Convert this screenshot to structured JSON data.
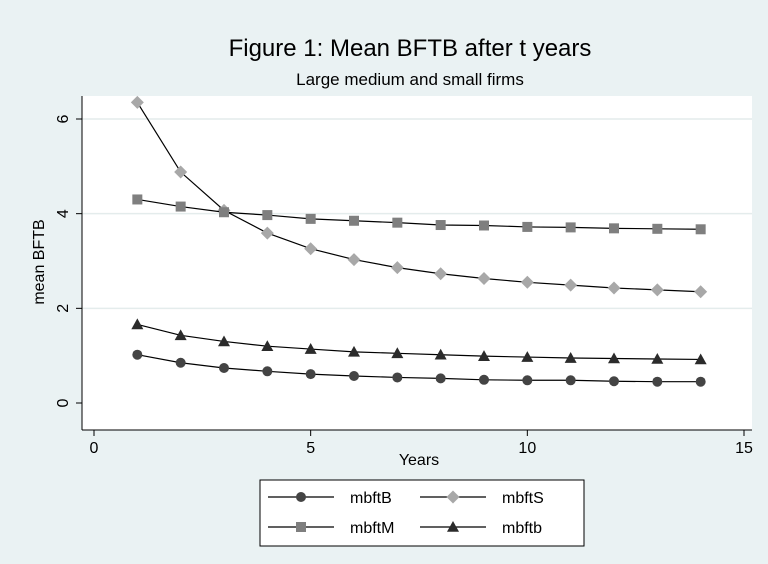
{
  "chart_data": {
    "type": "line",
    "title": "Figure 1: Mean BFTB after t years",
    "subtitle": "Large medium and small firms",
    "xlabel": "Years",
    "ylabel": "mean BFTB",
    "xlim": [
      0,
      15
    ],
    "ylim": [
      0,
      6.5
    ],
    "x_ticks": [
      0,
      5,
      10,
      15
    ],
    "y_ticks": [
      0,
      2,
      4,
      6
    ],
    "grid": "horizontal",
    "legend_position": "bottom",
    "x": [
      1,
      2,
      3,
      4,
      5,
      6,
      7,
      8,
      9,
      10,
      11,
      12,
      13,
      14
    ],
    "series": [
      {
        "name": "mbftB",
        "marker": "circle",
        "color": "#444444",
        "values": [
          1.02,
          0.85,
          0.74,
          0.67,
          0.61,
          0.57,
          0.54,
          0.52,
          0.49,
          0.48,
          0.48,
          0.46,
          0.45,
          0.45
        ]
      },
      {
        "name": "mbftS",
        "marker": "diamond",
        "color": "#a8a8a8",
        "values": [
          6.35,
          4.88,
          4.07,
          3.59,
          3.26,
          3.03,
          2.86,
          2.73,
          2.63,
          2.55,
          2.49,
          2.43,
          2.39,
          2.35
        ]
      },
      {
        "name": "mbftM",
        "marker": "square",
        "color": "#7f7f7f",
        "values": [
          4.3,
          4.15,
          4.03,
          3.97,
          3.89,
          3.85,
          3.81,
          3.76,
          3.75,
          3.72,
          3.71,
          3.69,
          3.68,
          3.67
        ]
      },
      {
        "name": "mbftb",
        "marker": "triangle",
        "color": "#2b2b2b",
        "values": [
          1.66,
          1.43,
          1.3,
          1.2,
          1.14,
          1.08,
          1.05,
          1.02,
          0.99,
          0.97,
          0.95,
          0.94,
          0.93,
          0.92
        ]
      }
    ]
  }
}
